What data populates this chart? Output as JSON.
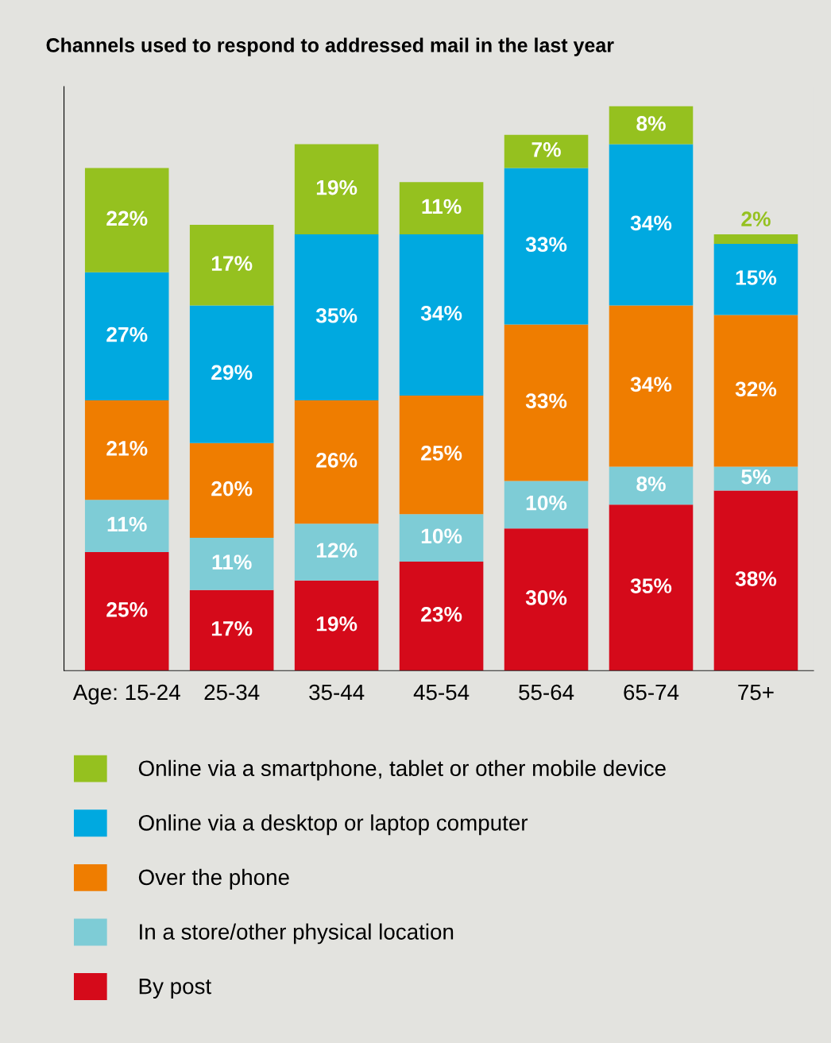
{
  "chart_data": {
    "type": "bar",
    "stacked": true,
    "title": "Channels used to respond to addressed mail in the last year",
    "categories": [
      "Age: 15-24",
      "25-34",
      "35-44",
      "45-54",
      "55-64",
      "65-74",
      "75+"
    ],
    "series": [
      {
        "name": "By post",
        "color": "#d50a1a",
        "values": [
          25,
          17,
          19,
          23,
          30,
          35,
          38
        ],
        "value_labels": [
          "25%",
          "17%",
          "19%",
          "23%",
          "30%",
          "35%",
          "38%"
        ]
      },
      {
        "name": "In a store/other physical location",
        "color": "#7eccd6",
        "values": [
          11,
          11,
          12,
          10,
          10,
          8,
          5
        ],
        "value_labels": [
          "11%",
          "11%",
          "12%",
          "10%",
          "10%",
          "8%",
          "5%"
        ]
      },
      {
        "name": "Over the phone",
        "color": "#ef7d00",
        "values": [
          21,
          20,
          26,
          25,
          33,
          34,
          32
        ],
        "value_labels": [
          "21%",
          "20%",
          "26%",
          "25%",
          "33%",
          "34%",
          "32%"
        ]
      },
      {
        "name": "Online via a desktop or laptop computer",
        "color": "#00a9e0",
        "values": [
          27,
          29,
          35,
          34,
          33,
          34,
          15
        ],
        "value_labels": [
          "27%",
          "29%",
          "35%",
          "34%",
          "33%",
          "34%",
          "15%"
        ]
      },
      {
        "name": "Online via a smartphone, tablet or other mobile device",
        "color": "#95c11f",
        "values": [
          22,
          17,
          19,
          11,
          7,
          8,
          2
        ],
        "value_labels": [
          "22%",
          "17%",
          "19%",
          "11%",
          "7%",
          "8%",
          "2%"
        ]
      }
    ],
    "legend": "bottom",
    "grid": false
  }
}
